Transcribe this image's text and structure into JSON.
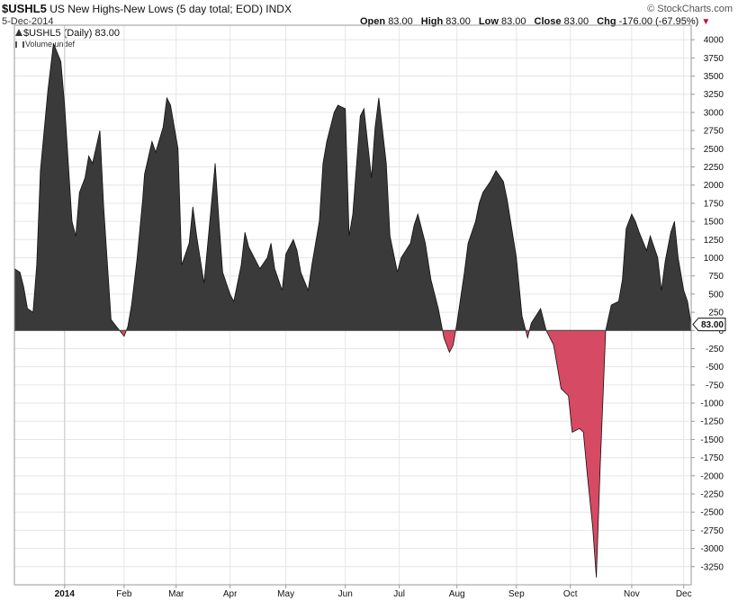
{
  "header": {
    "symbol": "$USHL5",
    "description": "US New Highs-New Lows (5 day total; EOD)",
    "exchange": "INDX",
    "date": "5-Dec-2014",
    "watermark": "© StockCharts.com",
    "legend_line1": "$USHL5 (Daily) 83.00",
    "legend_line2": "Volume undef",
    "open_label": "Open",
    "open_value": "83.00",
    "high_label": "High",
    "high_value": "83.00",
    "low_label": "Low",
    "low_value": "83.00",
    "close_label": "Close",
    "close_value": "83.00",
    "chg_label": "Chg",
    "chg_value": "-176.00 (-67.95%)",
    "last_value_tag": "83.00"
  },
  "colors": {
    "positive_fill": "#3a3a3a",
    "negative_fill": "#d64a63",
    "grid": "#e6e6e6",
    "axis": "#999999"
  },
  "chart_data": {
    "type": "area",
    "title": "$USHL5 US New Highs-New Lows (5 day total; EOD)",
    "ylim": [
      -3500,
      4200
    ],
    "yticks": [
      4000,
      3750,
      3500,
      3250,
      3000,
      2750,
      2500,
      2250,
      2000,
      1750,
      1500,
      1250,
      1000,
      750,
      500,
      250,
      0,
      -250,
      -500,
      -750,
      -1000,
      -1250,
      -1500,
      -1750,
      -2000,
      -2250,
      -2500,
      -2750,
      -3000,
      -3250
    ],
    "xlabels": [
      "2014",
      "Feb",
      "Mar",
      "Apr",
      "May",
      "Jun",
      "Jul",
      "Aug",
      "Sep",
      "Oct",
      "Nov",
      "Dec"
    ],
    "xlabel_bold": "2014",
    "x_range": [
      "2013-12-06",
      "2014-12-05"
    ],
    "grid": true,
    "series": [
      {
        "name": "$USHL5",
        "points": [
          [
            "2013-12-06",
            850
          ],
          [
            "2013-12-09",
            800
          ],
          [
            "2013-12-11",
            600
          ],
          [
            "2013-12-13",
            300
          ],
          [
            "2013-12-16",
            250
          ],
          [
            "2013-12-18",
            900
          ],
          [
            "2013-12-20",
            2200
          ],
          [
            "2013-12-24",
            3300
          ],
          [
            "2013-12-27",
            3950
          ],
          [
            "2013-12-31",
            3700
          ],
          [
            "2014-01-02",
            3100
          ],
          [
            "2014-01-06",
            1500
          ],
          [
            "2014-01-08",
            1300
          ],
          [
            "2014-01-10",
            1900
          ],
          [
            "2014-01-13",
            2100
          ],
          [
            "2014-01-15",
            2400
          ],
          [
            "2014-01-17",
            2300
          ],
          [
            "2014-01-21",
            2750
          ],
          [
            "2014-01-23",
            1700
          ],
          [
            "2014-01-27",
            150
          ],
          [
            "2014-01-30",
            50
          ],
          [
            "2014-02-03",
            -80
          ],
          [
            "2014-02-05",
            50
          ],
          [
            "2014-02-07",
            350
          ],
          [
            "2014-02-10",
            1000
          ],
          [
            "2014-02-13",
            1800
          ],
          [
            "2014-02-14",
            2150
          ],
          [
            "2014-02-18",
            2600
          ],
          [
            "2014-02-20",
            2450
          ],
          [
            "2014-02-24",
            2800
          ],
          [
            "2014-02-26",
            3200
          ],
          [
            "2014-02-28",
            3100
          ],
          [
            "2014-03-04",
            2500
          ],
          [
            "2014-03-06",
            900
          ],
          [
            "2014-03-10",
            1200
          ],
          [
            "2014-03-12",
            1700
          ],
          [
            "2014-03-14",
            1300
          ],
          [
            "2014-03-18",
            650
          ],
          [
            "2014-03-20",
            1200
          ],
          [
            "2014-03-24",
            2300
          ],
          [
            "2014-03-26",
            1500
          ],
          [
            "2014-03-28",
            800
          ],
          [
            "2014-04-01",
            500
          ],
          [
            "2014-04-03",
            400
          ],
          [
            "2014-04-07",
            900
          ],
          [
            "2014-04-09",
            1350
          ],
          [
            "2014-04-11",
            1150
          ],
          [
            "2014-04-15",
            950
          ],
          [
            "2014-04-17",
            850
          ],
          [
            "2014-04-21",
            1000
          ],
          [
            "2014-04-23",
            1200
          ],
          [
            "2014-04-25",
            850
          ],
          [
            "2014-04-29",
            550
          ],
          [
            "2014-05-01",
            1050
          ],
          [
            "2014-05-05",
            1250
          ],
          [
            "2014-05-07",
            1100
          ],
          [
            "2014-05-09",
            800
          ],
          [
            "2014-05-13",
            550
          ],
          [
            "2014-05-15",
            900
          ],
          [
            "2014-05-19",
            1500
          ],
          [
            "2014-05-21",
            2300
          ],
          [
            "2014-05-23",
            2600
          ],
          [
            "2014-05-27",
            3000
          ],
          [
            "2014-05-29",
            3100
          ],
          [
            "2014-06-02",
            3050
          ],
          [
            "2014-06-04",
            1300
          ],
          [
            "2014-06-06",
            1600
          ],
          [
            "2014-06-10",
            2950
          ],
          [
            "2014-06-12",
            3050
          ],
          [
            "2014-06-16",
            2100
          ],
          [
            "2014-06-18",
            2800
          ],
          [
            "2014-06-20",
            3200
          ],
          [
            "2014-06-24",
            2300
          ],
          [
            "2014-06-26",
            1300
          ],
          [
            "2014-06-30",
            800
          ],
          [
            "2014-07-02",
            1000
          ],
          [
            "2014-07-07",
            1200
          ],
          [
            "2014-07-09",
            1450
          ],
          [
            "2014-07-11",
            1600
          ],
          [
            "2014-07-15",
            1200
          ],
          [
            "2014-07-18",
            700
          ],
          [
            "2014-07-22",
            300
          ],
          [
            "2014-07-25",
            -100
          ],
          [
            "2014-07-28",
            -300
          ],
          [
            "2014-07-30",
            -200
          ],
          [
            "2014-08-01",
            100
          ],
          [
            "2014-08-05",
            800
          ],
          [
            "2014-08-07",
            1200
          ],
          [
            "2014-08-11",
            1500
          ],
          [
            "2014-08-13",
            1750
          ],
          [
            "2014-08-15",
            1900
          ],
          [
            "2014-08-19",
            2050
          ],
          [
            "2014-08-22",
            2200
          ],
          [
            "2014-08-26",
            2050
          ],
          [
            "2014-08-28",
            1800
          ],
          [
            "2014-09-02",
            1000
          ],
          [
            "2014-09-05",
            200
          ],
          [
            "2014-09-08",
            -100
          ],
          [
            "2014-09-10",
            100
          ],
          [
            "2014-09-15",
            300
          ],
          [
            "2014-09-18",
            0
          ],
          [
            "2014-09-22",
            -200
          ],
          [
            "2014-09-24",
            -500
          ],
          [
            "2014-09-26",
            -800
          ],
          [
            "2014-09-30",
            -900
          ],
          [
            "2014-10-02",
            -1400
          ],
          [
            "2014-10-06",
            -1350
          ],
          [
            "2014-10-08",
            -1400
          ],
          [
            "2014-10-10",
            -1950
          ],
          [
            "2014-10-13",
            -2700
          ],
          [
            "2014-10-15",
            -3400
          ],
          [
            "2014-10-17",
            -1900
          ],
          [
            "2014-10-20",
            0
          ],
          [
            "2014-10-23",
            350
          ],
          [
            "2014-10-27",
            400
          ],
          [
            "2014-10-29",
            700
          ],
          [
            "2014-10-31",
            1400
          ],
          [
            "2014-11-03",
            1600
          ],
          [
            "2014-11-05",
            1500
          ],
          [
            "2014-11-07",
            1350
          ],
          [
            "2014-11-11",
            1100
          ],
          [
            "2014-11-13",
            1300
          ],
          [
            "2014-11-17",
            1000
          ],
          [
            "2014-11-19",
            550
          ],
          [
            "2014-11-21",
            950
          ],
          [
            "2014-11-24",
            1350
          ],
          [
            "2014-11-26",
            1500
          ],
          [
            "2014-11-28",
            1000
          ],
          [
            "2014-12-01",
            550
          ],
          [
            "2014-12-03",
            400
          ],
          [
            "2014-12-05",
            83
          ]
        ]
      }
    ]
  }
}
